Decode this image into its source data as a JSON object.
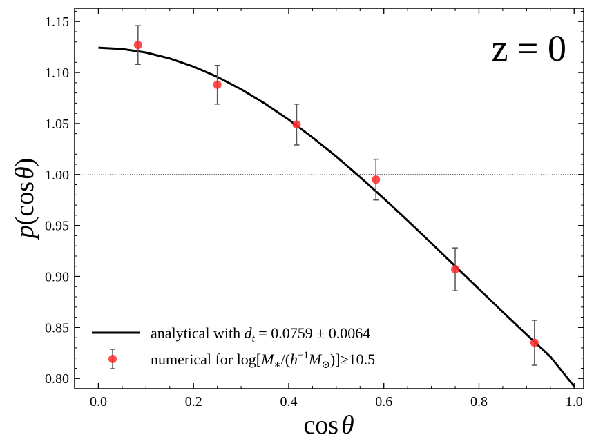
{
  "chart_data": {
    "type": "line+scatter",
    "xlabel": "cos θ",
    "ylabel": "p(cos θ)",
    "xlim": [
      -0.05,
      1.02
    ],
    "ylim": [
      0.79,
      1.163
    ],
    "xticks": [
      0.0,
      0.2,
      0.4,
      0.6,
      0.8,
      1.0
    ],
    "xtick_labels": [
      "0.0",
      "0.2",
      "0.4",
      "0.6",
      "0.8",
      "1.0"
    ],
    "yticks": [
      0.8,
      0.85,
      0.9,
      0.95,
      1.0,
      1.05,
      1.1,
      1.15
    ],
    "ytick_labels": [
      "0.80",
      "0.85",
      "0.90",
      "0.95",
      "1.00",
      "1.05",
      "1.10",
      "1.15"
    ],
    "annotation": "z = 0",
    "reference_line": {
      "y": 1.0,
      "style": "dotted"
    },
    "series": [
      {
        "name": "analytical with d_t = 0.0759 ± 0.0064",
        "kind": "line",
        "color": "#000000",
        "x": [
          0.0,
          0.05,
          0.1,
          0.15,
          0.2,
          0.25,
          0.3,
          0.35,
          0.4,
          0.45,
          0.5,
          0.55,
          0.6,
          0.65,
          0.7,
          0.75,
          0.8,
          0.85,
          0.9,
          0.95,
          1.0
        ],
        "y": [
          1.1243,
          1.1231,
          1.1196,
          1.1138,
          1.1058,
          1.0957,
          1.0836,
          1.0696,
          1.0538,
          1.0364,
          1.0176,
          0.9975,
          0.9765,
          0.9548,
          0.9326,
          0.9101,
          0.8876,
          0.8652,
          0.8431,
          0.8214,
          0.7922
        ]
      },
      {
        "name": "numerical for log[M*/(h⁻¹M☉)]≥10.5",
        "kind": "scatter",
        "color": "#ff2a2a",
        "x": [
          0.0833,
          0.25,
          0.4167,
          0.5833,
          0.75,
          0.9167
        ],
        "y": [
          1.127,
          1.088,
          1.049,
          0.995,
          0.907,
          0.835
        ],
        "yerr": [
          0.019,
          0.019,
          0.02,
          0.02,
          0.021,
          0.022
        ]
      }
    ],
    "legend": {
      "position": "lower-left",
      "line_prefix": "analytical with ",
      "line_symbol": "d",
      "line_subscript": "t",
      "line_suffix": " = 0.0759 ± 0.0064",
      "points_prefix": "numerical for log[",
      "points_mass": "M",
      "points_star": "∗",
      "points_mid": "/(",
      "points_h": "h",
      "points_exp": "−1",
      "points_msun": "M",
      "points_sun": "⊙",
      "points_suffix": ")]≥10.5"
    },
    "labels": {
      "x_func": "cos",
      "x_var": "θ",
      "y_p": "p",
      "y_open": "(",
      "y_func": "cos",
      "y_var": "θ",
      "y_close": ")"
    }
  }
}
